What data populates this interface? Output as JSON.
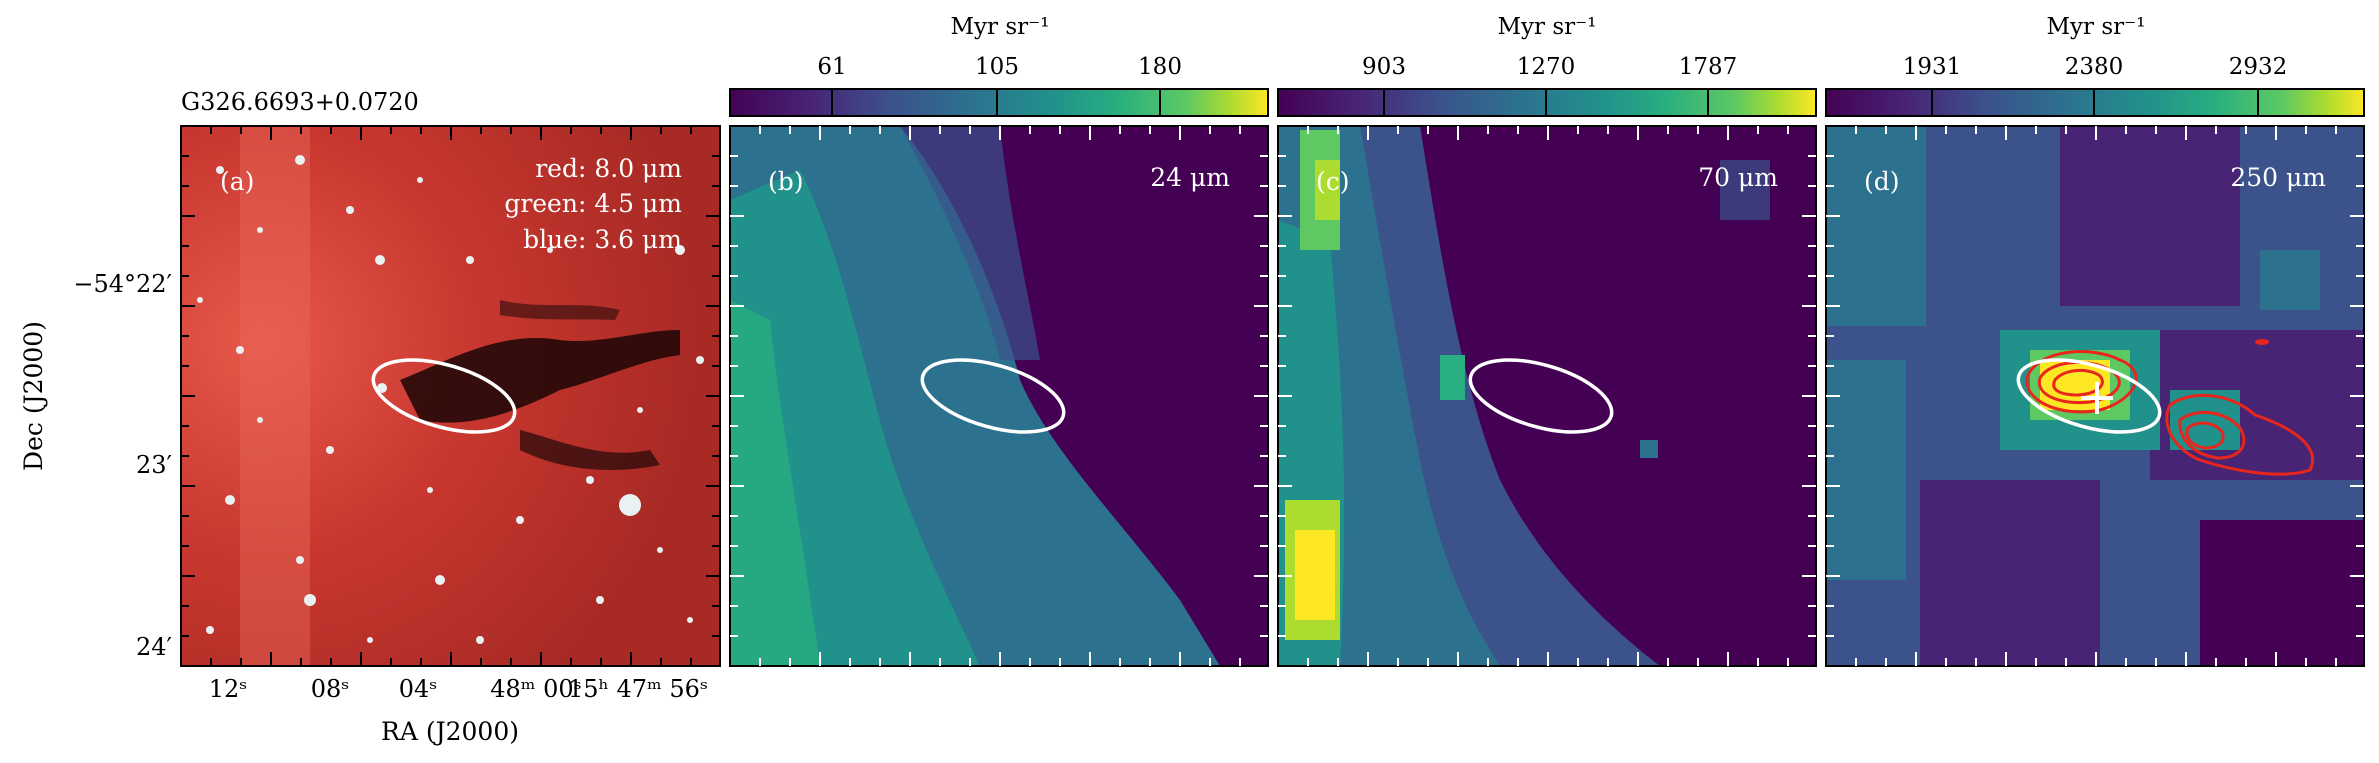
{
  "figure": {
    "source_name": "G326.6693+0.0720",
    "panels": [
      {
        "letter": "(a)",
        "annotations": [
          "red: 8.0 μm",
          "green: 4.5 μm",
          "blue: 3.6 μm"
        ]
      },
      {
        "letter": "(b)",
        "band": "24 μm"
      },
      {
        "letter": "(c)",
        "band": "70 μm"
      },
      {
        "letter": "(d)",
        "band": "250 μm"
      }
    ],
    "colorbars": [
      {
        "unit": "Myr sr⁻¹",
        "ticks": [
          "61",
          "105",
          "180"
        ]
      },
      {
        "unit": "Myr sr⁻¹",
        "ticks": [
          "903",
          "1270",
          "1787"
        ]
      },
      {
        "unit": "Myr sr⁻¹",
        "ticks": [
          "1931",
          "2380",
          "2932"
        ]
      }
    ],
    "y_axis": {
      "label": "Dec (J2000)",
      "ticks": [
        "−54°22′",
        "23′",
        "24′"
      ]
    },
    "x_axis": {
      "label": "RA (J2000)",
      "ticks": [
        "12ˢ",
        "08ˢ",
        "04ˢ",
        "48ᵐ 00ˢ",
        "15ʰ 47ᵐ 56ˢ"
      ]
    },
    "colors": {
      "viridis_dark": "#440154",
      "viridis_mid": "#21918c",
      "viridis_bright": "#fde725",
      "contour": "#e8261c",
      "ellipse": "#ffffff"
    }
  }
}
